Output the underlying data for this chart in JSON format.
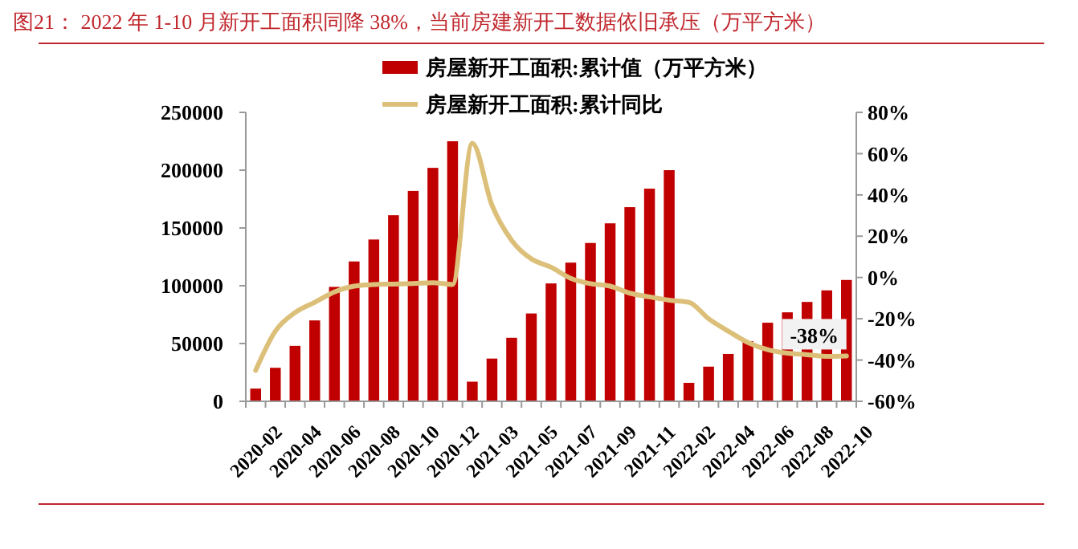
{
  "chart_data": {
    "type": "bar",
    "title": "图21：  2022 年 1-10 月新开工面积同降 38%，当前房建新开工数据依旧承压（万平方米）",
    "categories": [
      "2020-02",
      null,
      "2020-04",
      null,
      "2020-06",
      null,
      "2020-08",
      null,
      "2020-10",
      null,
      "2020-12",
      null,
      "2021-03",
      null,
      "2021-05",
      null,
      "2021-07",
      null,
      "2021-09",
      null,
      "2021-11",
      null,
      "2022-02",
      null,
      "2022-04",
      null,
      "2022-06",
      null,
      "2022-08",
      null,
      "2022-10"
    ],
    "series": [
      {
        "name": "房屋新开工面积:累计值（万平方米）",
        "color": "#c00000",
        "values": [
          11000,
          29000,
          48000,
          70000,
          99000,
          121000,
          140000,
          161000,
          182000,
          202000,
          225000,
          17000,
          37000,
          55000,
          76000,
          102000,
          120000,
          137000,
          154000,
          168000,
          184000,
          200000,
          16000,
          30000,
          41000,
          52000,
          68000,
          77000,
          86000,
          96000,
          105000
        ]
      },
      {
        "name": "房屋新开工面积:累计同比",
        "type": "line",
        "axis": "y2",
        "color": "#dcc07a",
        "values": [
          -45,
          -26,
          -17,
          -12,
          -7,
          -4.2,
          -3.4,
          -3.2,
          -2.9,
          -2.5,
          -3.4,
          65,
          35,
          18,
          9,
          5,
          -0.4,
          -3,
          -4.2,
          -7.6,
          -9.4,
          -11,
          -12,
          -20,
          -26,
          -31.5,
          -35,
          -36.7,
          -37.4,
          -38.2,
          -38
        ]
      }
    ],
    "ylim": [
      0,
      250000
    ],
    "yticks": [
      0,
      50000,
      100000,
      150000,
      200000,
      250000
    ],
    "y2lim": [
      -60,
      80
    ],
    "y2ticks": [
      {
        "value": -60,
        "label": "-60%"
      },
      {
        "value": -40,
        "label": "-40%"
      },
      {
        "value": -20,
        "label": "-20%"
      },
      {
        "value": 0,
        "label": "0%"
      },
      {
        "value": 20,
        "label": "20%"
      },
      {
        "value": 40,
        "label": "40%"
      },
      {
        "value": 60,
        "label": "60%"
      },
      {
        "value": 80,
        "label": "80%"
      }
    ],
    "annotations": [
      {
        "text": "-38%",
        "x": "2022-10",
        "y": -38
      }
    ],
    "legend": "top",
    "grid": false
  }
}
